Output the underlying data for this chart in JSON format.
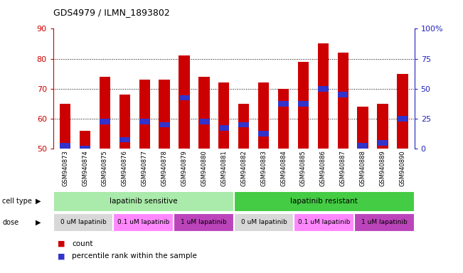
{
  "title": "GDS4979 / ILMN_1893802",
  "samples": [
    "GSM940873",
    "GSM940874",
    "GSM940875",
    "GSM940876",
    "GSM940877",
    "GSM940878",
    "GSM940879",
    "GSM940880",
    "GSM940881",
    "GSM940882",
    "GSM940883",
    "GSM940884",
    "GSM940885",
    "GSM940886",
    "GSM940887",
    "GSM940888",
    "GSM940889",
    "GSM940890"
  ],
  "bar_heights": [
    65,
    56,
    74,
    68,
    73,
    73,
    81,
    74,
    72,
    65,
    72,
    70,
    79,
    85,
    82,
    64,
    65,
    75
  ],
  "blue_markers": [
    51,
    50,
    59,
    53,
    59,
    58,
    67,
    59,
    57,
    58,
    55,
    65,
    65,
    70,
    68,
    51,
    52,
    60
  ],
  "ylim_left": [
    50,
    90
  ],
  "ylim_right": [
    0,
    100
  ],
  "yticks_left": [
    50,
    60,
    70,
    80,
    90
  ],
  "yticks_right": [
    0,
    25,
    50,
    75,
    100
  ],
  "ytick_right_labels": [
    "0",
    "25",
    "50",
    "75",
    "100%"
  ],
  "grid_lines": [
    60,
    70,
    80
  ],
  "bar_color": "#CC0000",
  "blue_color": "#3333CC",
  "ylabel_left_color": "#CC0000",
  "ylabel_right_color": "#2222BB",
  "cell_colors": [
    "#AAEAAA",
    "#44CC44"
  ],
  "cell_labels": [
    "lapatinib sensitive",
    "lapatinib resistant"
  ],
  "cell_ranges": [
    [
      0,
      9
    ],
    [
      9,
      18
    ]
  ],
  "dose_colors": [
    "#D8D8D8",
    "#FF88FF",
    "#BB44BB",
    "#D8D8D8",
    "#FF88FF",
    "#BB44BB"
  ],
  "dose_labels": [
    "0 uM lapatinib",
    "0.1 uM lapatinib",
    "1 uM lapatinib",
    "0 uM lapatinib",
    "0.1 uM lapatinib",
    "1 uM lapatinib"
  ],
  "dose_ranges": [
    [
      0,
      3
    ],
    [
      3,
      6
    ],
    [
      6,
      9
    ],
    [
      9,
      12
    ],
    [
      12,
      15
    ],
    [
      15,
      18
    ]
  ],
  "xbg_color": "#C8C8C8",
  "legend_count_color": "#CC0000",
  "legend_pct_color": "#3333CC"
}
